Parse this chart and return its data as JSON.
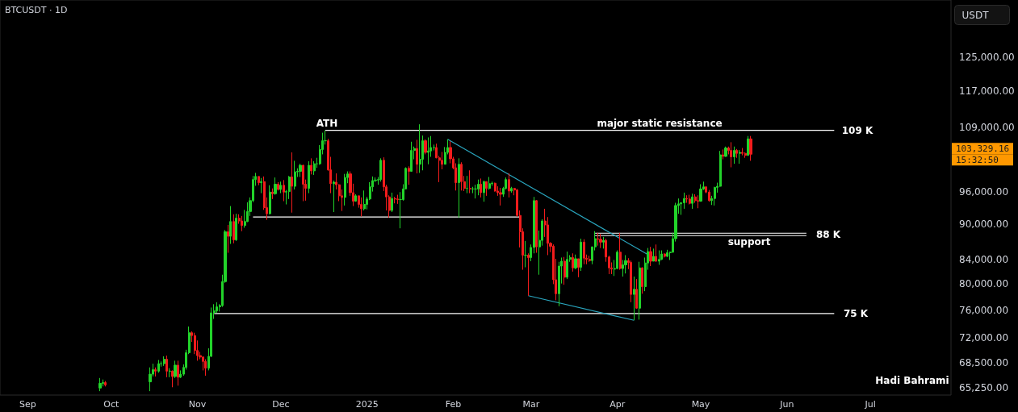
{
  "chart_data": {
    "type": "candlestick",
    "title": "BTCUSDT · 1D",
    "ylabel": "USDT",
    "x": [
      "2024-09-27",
      "2024-09-28",
      "2024-09-29",
      "2024-10-15",
      "2024-10-16",
      "2024-10-17",
      "2024-10-18",
      "2024-10-19",
      "2024-10-20",
      "2024-10-21",
      "2024-10-22",
      "2024-10-23",
      "2024-10-24",
      "2024-10-25",
      "2024-10-26",
      "2024-10-27",
      "2024-10-28",
      "2024-10-29",
      "2024-10-30",
      "2024-10-31",
      "2024-11-01",
      "2024-11-02",
      "2024-11-03",
      "2024-11-04",
      "2024-11-05",
      "2024-11-06",
      "2024-11-07",
      "2024-11-08",
      "2024-11-09",
      "2024-11-10",
      "2024-11-11",
      "2024-11-12",
      "2024-11-13",
      "2024-11-14",
      "2024-11-15",
      "2024-11-16",
      "2024-11-17",
      "2024-11-18",
      "2024-11-19",
      "2024-11-20",
      "2024-11-21",
      "2024-11-22",
      "2024-11-23",
      "2024-11-24",
      "2024-11-25",
      "2024-11-26",
      "2024-11-27",
      "2024-11-28",
      "2024-11-29",
      "2024-11-30",
      "2024-12-01",
      "2024-12-02",
      "2024-12-03",
      "2024-12-04",
      "2024-12-05",
      "2024-12-06",
      "2024-12-07",
      "2024-12-08",
      "2024-12-09",
      "2024-12-10",
      "2024-12-11",
      "2024-12-12",
      "2024-12-13",
      "2024-12-14",
      "2024-12-15",
      "2024-12-16",
      "2024-12-17",
      "2024-12-18",
      "2024-12-19",
      "2024-12-20",
      "2024-12-21",
      "2024-12-22",
      "2024-12-23",
      "2024-12-24",
      "2024-12-25",
      "2024-12-26",
      "2024-12-27",
      "2024-12-28",
      "2024-12-29",
      "2024-12-30",
      "2024-12-31",
      "2025-01-01",
      "2025-01-02",
      "2025-01-03",
      "2025-01-04",
      "2025-01-05",
      "2025-01-06",
      "2025-01-07",
      "2025-01-08",
      "2025-01-09",
      "2025-01-10",
      "2025-01-11",
      "2025-01-12",
      "2025-01-13",
      "2025-01-14",
      "2025-01-15",
      "2025-01-16",
      "2025-01-17",
      "2025-01-18",
      "2025-01-19",
      "2025-01-20",
      "2025-01-21",
      "2025-01-22",
      "2025-01-23",
      "2025-01-24",
      "2025-01-25",
      "2025-01-26",
      "2025-01-27",
      "2025-01-28",
      "2025-01-29",
      "2025-01-30",
      "2025-01-31",
      "2025-02-01",
      "2025-02-02",
      "2025-02-03",
      "2025-02-04",
      "2025-02-05",
      "2025-02-06",
      "2025-02-07",
      "2025-02-08",
      "2025-02-09",
      "2025-02-10",
      "2025-02-11",
      "2025-02-12",
      "2025-02-13",
      "2025-02-14",
      "2025-02-15",
      "2025-02-16",
      "2025-02-17",
      "2025-02-18",
      "2025-02-19",
      "2025-02-20",
      "2025-02-21",
      "2025-02-22",
      "2025-02-23",
      "2025-02-24",
      "2025-02-25",
      "2025-02-26",
      "2025-02-27",
      "2025-02-28",
      "2025-03-01",
      "2025-03-02",
      "2025-03-03",
      "2025-03-04",
      "2025-03-05",
      "2025-03-06",
      "2025-03-07",
      "2025-03-08",
      "2025-03-09",
      "2025-03-10",
      "2025-03-11",
      "2025-03-12",
      "2025-03-13",
      "2025-03-14",
      "2025-03-15",
      "2025-03-16",
      "2025-03-17",
      "2025-03-18",
      "2025-03-19",
      "2025-03-20",
      "2025-03-21",
      "2025-03-22",
      "2025-03-23",
      "2025-03-24",
      "2025-03-25",
      "2025-03-26",
      "2025-03-27",
      "2025-03-28",
      "2025-03-29",
      "2025-03-30",
      "2025-03-31",
      "2025-04-01",
      "2025-04-02",
      "2025-04-03",
      "2025-04-04",
      "2025-04-05",
      "2025-04-06",
      "2025-04-07",
      "2025-04-08",
      "2025-04-09",
      "2025-04-10",
      "2025-04-11",
      "2025-04-12",
      "2025-04-13",
      "2025-04-14",
      "2025-04-15",
      "2025-04-16",
      "2025-04-17",
      "2025-04-18",
      "2025-04-19",
      "2025-04-20",
      "2025-04-21",
      "2025-04-22",
      "2025-04-23",
      "2025-04-24",
      "2025-04-25",
      "2025-04-26",
      "2025-04-27",
      "2025-04-28",
      "2025-04-29",
      "2025-04-30",
      "2025-05-01",
      "2025-05-02",
      "2025-05-03",
      "2025-05-04",
      "2025-05-05",
      "2025-05-06",
      "2025-05-07",
      "2025-05-08",
      "2025-05-09",
      "2025-05-10",
      "2025-05-11",
      "2025-05-12",
      "2025-05-13",
      "2025-05-14",
      "2025-05-15",
      "2025-05-16",
      "2025-05-17",
      "2025-05-18",
      "2025-05-19"
    ],
    "ohlc": [
      [
        65200,
        66500,
        64800,
        65800
      ],
      [
        65800,
        66300,
        65400,
        65900
      ],
      [
        65900,
        66100,
        65400,
        65600
      ],
      [
        66000,
        67900,
        64800,
        67000
      ],
      [
        67000,
        68400,
        66700,
        67600
      ],
      [
        67600,
        67900,
        66700,
        67400
      ],
      [
        67400,
        68900,
        67200,
        68400
      ],
      [
        68400,
        68700,
        68000,
        68400
      ],
      [
        68400,
        69400,
        68100,
        69000
      ],
      [
        69000,
        69500,
        66600,
        67400
      ],
      [
        67400,
        67800,
        66600,
        67400
      ],
      [
        67400,
        67500,
        65300,
        66700
      ],
      [
        66700,
        68800,
        66500,
        68200
      ],
      [
        68200,
        68800,
        65500,
        66600
      ],
      [
        66600,
        67500,
        66500,
        67000
      ],
      [
        67000,
        68300,
        66800,
        67900
      ],
      [
        67900,
        70300,
        67600,
        69900
      ],
      [
        69900,
        73600,
        69700,
        72700
      ],
      [
        72700,
        72900,
        71400,
        72300
      ],
      [
        72300,
        72700,
        69700,
        70200
      ],
      [
        70200,
        71600,
        68800,
        69500
      ],
      [
        69500,
        70000,
        69000,
        69300
      ],
      [
        69300,
        69400,
        67500,
        68700
      ],
      [
        68700,
        69000,
        66800,
        67800
      ],
      [
        67800,
        70500,
        67500,
        69400
      ],
      [
        69400,
        76400,
        69300,
        75600
      ],
      [
        75600,
        76900,
        74700,
        75900
      ],
      [
        75900,
        77200,
        75600,
        76500
      ],
      [
        76500,
        76900,
        75800,
        76700
      ],
      [
        76700,
        81500,
        76500,
        80400
      ],
      [
        80400,
        89000,
        80200,
        88700
      ],
      [
        88700,
        89900,
        85100,
        87900
      ],
      [
        87900,
        93300,
        86600,
        90500
      ],
      [
        90500,
        91800,
        86700,
        87300
      ],
      [
        87300,
        91900,
        87100,
        91100
      ],
      [
        91100,
        91800,
        90100,
        90600
      ],
      [
        90600,
        91500,
        88800,
        89800
      ],
      [
        89800,
        92600,
        89400,
        90500
      ],
      [
        90500,
        94000,
        90400,
        92300
      ],
      [
        92300,
        94900,
        91500,
        94300
      ],
      [
        94300,
        99000,
        94000,
        98300
      ],
      [
        98300,
        99600,
        97100,
        98900
      ],
      [
        98900,
        98900,
        97200,
        97700
      ],
      [
        97700,
        98600,
        95700,
        97900
      ],
      [
        97900,
        98900,
        92600,
        93000
      ],
      [
        93000,
        94900,
        90800,
        91900
      ],
      [
        91900,
        97200,
        91800,
        95900
      ],
      [
        95900,
        96600,
        94600,
        95600
      ],
      [
        95600,
        98700,
        95400,
        97400
      ],
      [
        97400,
        97800,
        96200,
        96400
      ],
      [
        96400,
        97900,
        95700,
        97200
      ],
      [
        97200,
        98200,
        94200,
        95900
      ],
      [
        95900,
        96300,
        93600,
        96000
      ],
      [
        96000,
        99000,
        94600,
        98800
      ],
      [
        98800,
        103700,
        92100,
        97000
      ],
      [
        97000,
        102000,
        96400,
        99800
      ],
      [
        99800,
        100500,
        98800,
        99900
      ],
      [
        99900,
        101400,
        98800,
        101100
      ],
      [
        101100,
        101200,
        94200,
        97400
      ],
      [
        97400,
        98300,
        94300,
        96600
      ],
      [
        96600,
        101900,
        95700,
        101100
      ],
      [
        101100,
        102500,
        99300,
        100000
      ],
      [
        100000,
        101900,
        99200,
        101400
      ],
      [
        101400,
        102600,
        100600,
        101400
      ],
      [
        101400,
        105200,
        101200,
        104300
      ],
      [
        104300,
        107800,
        103300,
        106100
      ],
      [
        106100,
        108300,
        105300,
        106100
      ],
      [
        106100,
        106500,
        100000,
        100200
      ],
      [
        100200,
        102800,
        95700,
        97500
      ],
      [
        97500,
        98100,
        92200,
        97800
      ],
      [
        97800,
        99500,
        96400,
        97300
      ],
      [
        97300,
        97400,
        94200,
        95200
      ],
      [
        95200,
        96400,
        92400,
        94900
      ],
      [
        94900,
        99400,
        93400,
        98700
      ],
      [
        98700,
        99900,
        97600,
        99400
      ],
      [
        99400,
        99900,
        95200,
        95800
      ],
      [
        95800,
        97500,
        93300,
        94200
      ],
      [
        94200,
        95500,
        94100,
        95200
      ],
      [
        95200,
        95200,
        93000,
        93600
      ],
      [
        93600,
        94900,
        91400,
        92800
      ],
      [
        92800,
        96200,
        92500,
        93600
      ],
      [
        93600,
        95000,
        92700,
        94600
      ],
      [
        94600,
        97800,
        94400,
        96900
      ],
      [
        96900,
        98900,
        96000,
        98100
      ],
      [
        98100,
        98700,
        97800,
        98200
      ],
      [
        98200,
        98800,
        97300,
        98300
      ],
      [
        98300,
        102500,
        97900,
        102100
      ],
      [
        102100,
        102700,
        96100,
        96900
      ],
      [
        96900,
        97300,
        92500,
        95000
      ],
      [
        95000,
        95300,
        91200,
        92500
      ],
      [
        92500,
        95800,
        92200,
        94700
      ],
      [
        94700,
        95000,
        93800,
        94600
      ],
      [
        94600,
        95400,
        93700,
        94500
      ],
      [
        94500,
        95900,
        89300,
        94500
      ],
      [
        94500,
        97400,
        94300,
        96500
      ],
      [
        96500,
        100700,
        96500,
        100500
      ],
      [
        100500,
        100900,
        97300,
        99900
      ],
      [
        99900,
        105900,
        99900,
        104100
      ],
      [
        104100,
        104900,
        102300,
        104500
      ],
      [
        104500,
        106300,
        99500,
        101300
      ],
      [
        101300,
        109600,
        99600,
        102300
      ],
      [
        102300,
        107200,
        100100,
        106100
      ],
      [
        106100,
        106400,
        103300,
        103700
      ],
      [
        103700,
        106800,
        101300,
        104000
      ],
      [
        104000,
        107100,
        102800,
        104700
      ],
      [
        104700,
        105300,
        104100,
        104700
      ],
      [
        104700,
        105500,
        102500,
        102600
      ],
      [
        102600,
        103000,
        97800,
        102100
      ],
      [
        102100,
        103800,
        100300,
        101300
      ],
      [
        101300,
        104800,
        101300,
        103700
      ],
      [
        103700,
        106400,
        103300,
        104700
      ],
      [
        104700,
        106000,
        101500,
        102400
      ],
      [
        102400,
        102800,
        100300,
        100600
      ],
      [
        100600,
        101500,
        96200,
        97700
      ],
      [
        97700,
        102500,
        91200,
        101300
      ],
      [
        101300,
        101700,
        96200,
        97900
      ],
      [
        97900,
        99000,
        96100,
        96600
      ],
      [
        96600,
        99000,
        95700,
        96600
      ],
      [
        96600,
        100100,
        95700,
        96500
      ],
      [
        96500,
        96900,
        95700,
        96500
      ],
      [
        96500,
        97300,
        94700,
        96500
      ],
      [
        96500,
        98300,
        95300,
        97400
      ],
      [
        97400,
        98500,
        94900,
        95800
      ],
      [
        95800,
        98100,
        94100,
        97900
      ],
      [
        97900,
        97900,
        95200,
        96600
      ],
      [
        96600,
        98800,
        96400,
        97500
      ],
      [
        97500,
        97900,
        97100,
        97600
      ],
      [
        97600,
        97700,
        96000,
        96100
      ],
      [
        96100,
        97000,
        95200,
        95800
      ],
      [
        95800,
        96700,
        93400,
        95500
      ],
      [
        95500,
        96900,
        95000,
        96600
      ],
      [
        96600,
        98700,
        96400,
        98300
      ],
      [
        98300,
        99500,
        94900,
        96100
      ],
      [
        96100,
        96900,
        95800,
        96600
      ],
      [
        96600,
        96700,
        95300,
        96300
      ],
      [
        96300,
        96500,
        91300,
        91600
      ],
      [
        91600,
        92500,
        86000,
        88700
      ],
      [
        88700,
        89300,
        82300,
        84700
      ],
      [
        84700,
        87100,
        82700,
        84700
      ],
      [
        84700,
        85000,
        78200,
        84300
      ],
      [
        84300,
        86500,
        83700,
        86000
      ],
      [
        86000,
        95000,
        85000,
        94300
      ],
      [
        94300,
        94400,
        85100,
        86100
      ],
      [
        86100,
        88900,
        81500,
        87200
      ],
      [
        87200,
        90900,
        86300,
        90600
      ],
      [
        90600,
        92800,
        87800,
        89900
      ],
      [
        89900,
        91300,
        84700,
        86700
      ],
      [
        86700,
        86900,
        85200,
        86200
      ],
      [
        86200,
        86500,
        80000,
        80700
      ],
      [
        80700,
        84100,
        77500,
        78500
      ],
      [
        78500,
        83600,
        76600,
        82900
      ],
      [
        82900,
        84300,
        80100,
        83700
      ],
      [
        83700,
        84400,
        79900,
        81100
      ],
      [
        81100,
        85300,
        80800,
        84000
      ],
      [
        84000,
        84700,
        83600,
        84300
      ],
      [
        84300,
        85000,
        82000,
        82600
      ],
      [
        82600,
        84800,
        82400,
        84100
      ],
      [
        84100,
        84100,
        81100,
        82700
      ],
      [
        82700,
        87500,
        82100,
        86900
      ],
      [
        86900,
        87400,
        83200,
        84200
      ],
      [
        84200,
        84800,
        83200,
        84000
      ],
      [
        84000,
        84600,
        83600,
        83800
      ],
      [
        83800,
        86100,
        83200,
        86100
      ],
      [
        86100,
        88800,
        85500,
        87500
      ],
      [
        87500,
        88500,
        86300,
        87400
      ],
      [
        87400,
        88300,
        85900,
        86900
      ],
      [
        86900,
        87800,
        85800,
        87200
      ],
      [
        87200,
        87500,
        83600,
        84400
      ],
      [
        84400,
        84600,
        81600,
        82600
      ],
      [
        82600,
        83500,
        81600,
        82400
      ],
      [
        82400,
        83900,
        81300,
        82500
      ],
      [
        82500,
        85500,
        82400,
        85200
      ],
      [
        85200,
        88500,
        82300,
        82500
      ],
      [
        82500,
        83900,
        81200,
        83100
      ],
      [
        83100,
        84700,
        81700,
        83800
      ],
      [
        83800,
        84200,
        82400,
        83500
      ],
      [
        83500,
        83800,
        77200,
        78400
      ],
      [
        78400,
        81200,
        74500,
        79200
      ],
      [
        79200,
        80800,
        76200,
        76300
      ],
      [
        76300,
        83600,
        74600,
        82600
      ],
      [
        82600,
        82700,
        78500,
        79600
      ],
      [
        79600,
        84300,
        78900,
        83400
      ],
      [
        83400,
        85900,
        82300,
        85300
      ],
      [
        85300,
        86100,
        82900,
        83700
      ],
      [
        83700,
        85800,
        83700,
        84500
      ],
      [
        84500,
        86500,
        83600,
        83700
      ],
      [
        83700,
        85500,
        83100,
        84000
      ],
      [
        84000,
        85500,
        83900,
        84900
      ],
      [
        84900,
        85000,
        84300,
        84500
      ],
      [
        84500,
        85600,
        84400,
        85100
      ],
      [
        85100,
        85300,
        83900,
        85200
      ],
      [
        85200,
        88500,
        85100,
        87500
      ],
      [
        87500,
        93900,
        87000,
        93400
      ],
      [
        93400,
        94700,
        91900,
        93700
      ],
      [
        93700,
        94000,
        91700,
        93900
      ],
      [
        93900,
        95800,
        92800,
        94700
      ],
      [
        94700,
        95300,
        93900,
        94600
      ],
      [
        94600,
        95400,
        93600,
        93800
      ],
      [
        93800,
        95600,
        92800,
        95000
      ],
      [
        95000,
        95500,
        93900,
        94300
      ],
      [
        94300,
        95300,
        92900,
        94200
      ],
      [
        94200,
        97400,
        94100,
        96500
      ],
      [
        96500,
        97900,
        96300,
        96900
      ],
      [
        96900,
        96900,
        95700,
        95900
      ],
      [
        95900,
        96300,
        94100,
        94300
      ],
      [
        94300,
        95200,
        93500,
        94700
      ],
      [
        94700,
        96900,
        93400,
        96800
      ],
      [
        96800,
        97700,
        95800,
        97000
      ],
      [
        97000,
        104000,
        96900,
        103200
      ],
      [
        103200,
        104300,
        102300,
        102900
      ],
      [
        102900,
        104900,
        102800,
        104600
      ],
      [
        104600,
        104900,
        103300,
        104100
      ],
      [
        104100,
        105800,
        100700,
        102800
      ],
      [
        102800,
        104900,
        101400,
        104100
      ],
      [
        104100,
        104400,
        102600,
        103500
      ],
      [
        103500,
        104200,
        101400,
        103700
      ],
      [
        103700,
        104600,
        103100,
        103500
      ],
      [
        103500,
        103700,
        102600,
        103100
      ],
      [
        103100,
        107100,
        103000,
        106500
      ],
      [
        106500,
        107100,
        102000,
        103329.16
      ]
    ],
    "series": [
      {
        "type": "line",
        "color": "#ffffff",
        "x": [
          "2024-12-17",
          "2025-06-18"
        ],
        "values": [
          108300,
          108300
        ]
      },
      {
        "type": "line",
        "color": "#ffffff",
        "x": [
          "2024-11-21",
          "2025-02-25"
        ],
        "values": [
          91300,
          91300
        ]
      },
      {
        "type": "line",
        "color": "#ffffff",
        "x": [
          "2024-11-07",
          "2025-06-18"
        ],
        "values": [
          75500,
          75500
        ]
      },
      {
        "type": "line",
        "color": "#ffffff",
        "x": [
          "2025-03-24",
          "2025-06-08"
        ],
        "values": [
          88440,
          88440
        ]
      },
      {
        "type": "line",
        "color": "#ffffff",
        "x": [
          "2025-03-24",
          "2025-06-08"
        ],
        "values": [
          88020,
          88020
        ]
      },
      {
        "type": "line",
        "color": "#2aa6bf",
        "x": [
          "2025-01-30",
          "2025-04-12"
        ],
        "values": [
          106400,
          84800
        ]
      },
      {
        "type": "line",
        "color": "#2aa6bf",
        "x": [
          "2025-02-28",
          "2025-04-07"
        ],
        "values": [
          78200,
          74500
        ]
      }
    ],
    "annotations": [
      "ATH",
      "major static resistance",
      "109 K",
      "88 K",
      "support",
      "75 K",
      "103,329.16",
      "15:32:50",
      "Hadi Bahrami"
    ],
    "xlim": [
      "2024-08-22",
      "2025-07-30"
    ],
    "xticks": [
      {
        "value": "2024-09-01",
        "label": "Sep"
      },
      {
        "value": "2024-10-01",
        "label": "Oct"
      },
      {
        "value": "2024-11-01",
        "label": "Nov"
      },
      {
        "value": "2024-12-01",
        "label": "Dec"
      },
      {
        "value": "2025-01-01",
        "label": "2025"
      },
      {
        "value": "2025-02-01",
        "label": "Feb"
      },
      {
        "value": "2025-03-01",
        "label": "Mar"
      },
      {
        "value": "2025-04-01",
        "label": "Apr"
      },
      {
        "value": "2025-05-01",
        "label": "May"
      },
      {
        "value": "2025-06-01",
        "label": "Jun"
      },
      {
        "value": "2025-07-01",
        "label": "Jul"
      }
    ],
    "log": true,
    "ylim": [
      64300,
      140000
    ],
    "yticks": [
      {
        "value": 65250,
        "label": "65,250.00"
      },
      {
        "value": 68500,
        "label": "68,500.00"
      },
      {
        "value": 72000,
        "label": "72,000.00"
      },
      {
        "value": 76000,
        "label": "76,000.00"
      },
      {
        "value": 80000,
        "label": "80,000.00"
      },
      {
        "value": 84000,
        "label": "84,000.00"
      },
      {
        "value": 90000,
        "label": "90,000.00"
      },
      {
        "value": 96000,
        "label": "96,000.00"
      },
      {
        "value": 109000,
        "label": "109,000.00"
      },
      {
        "value": 117000,
        "label": "117,000.00"
      },
      {
        "value": 125000,
        "label": "125,000.00"
      }
    ],
    "grid": false
  }
}
